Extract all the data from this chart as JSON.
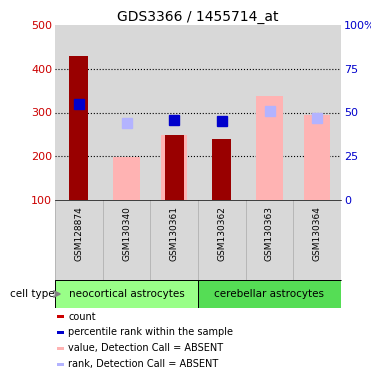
{
  "title": "GDS3366 / 1455714_at",
  "samples": [
    "GSM128874",
    "GSM130340",
    "GSM130361",
    "GSM130362",
    "GSM130363",
    "GSM130364"
  ],
  "count_values": [
    430,
    null,
    248,
    240,
    null,
    null
  ],
  "count_color": "#990000",
  "percentile_rank_values": [
    320,
    null,
    283,
    280,
    null,
    null
  ],
  "percentile_rank_color": "#0000cc",
  "absent_value_values": [
    null,
    198,
    248,
    null,
    338,
    295
  ],
  "absent_value_color": "#ffb3b3",
  "absent_rank_values": [
    null,
    275,
    null,
    null,
    303,
    288
  ],
  "absent_rank_color": "#b3b3ff",
  "ylim_left": [
    100,
    500
  ],
  "ylim_right": [
    0,
    100
  ],
  "yticks_left": [
    100,
    200,
    300,
    400,
    500
  ],
  "yticks_right": [
    0,
    25,
    50,
    75,
    100
  ],
  "ytick_labels_right": [
    "0",
    "25",
    "50",
    "75",
    "100%"
  ],
  "cell_type_groups": [
    {
      "label": "neocortical astrocytes",
      "start": 0,
      "end": 3,
      "color": "#99ff88"
    },
    {
      "label": "cerebellar astrocytes",
      "start": 3,
      "end": 6,
      "color": "#55dd55"
    }
  ],
  "legend_items": [
    {
      "label": "count",
      "color": "#cc0000"
    },
    {
      "label": "percentile rank within the sample",
      "color": "#0000cc"
    },
    {
      "label": "value, Detection Call = ABSENT",
      "color": "#ffb3b3"
    },
    {
      "label": "rank, Detection Call = ABSENT",
      "color": "#b3b3ff"
    }
  ],
  "bar_width": 0.4,
  "absent_bar_width": 0.55,
  "marker_size": 7,
  "cell_type_label": "cell type",
  "background_color": "#ffffff",
  "plot_bg_color": "#d8d8d8",
  "grid_color": "#000000",
  "tick_label_color_left": "#cc0000",
  "tick_label_color_right": "#0000cc",
  "grid_yticks": [
    200,
    300,
    400
  ]
}
